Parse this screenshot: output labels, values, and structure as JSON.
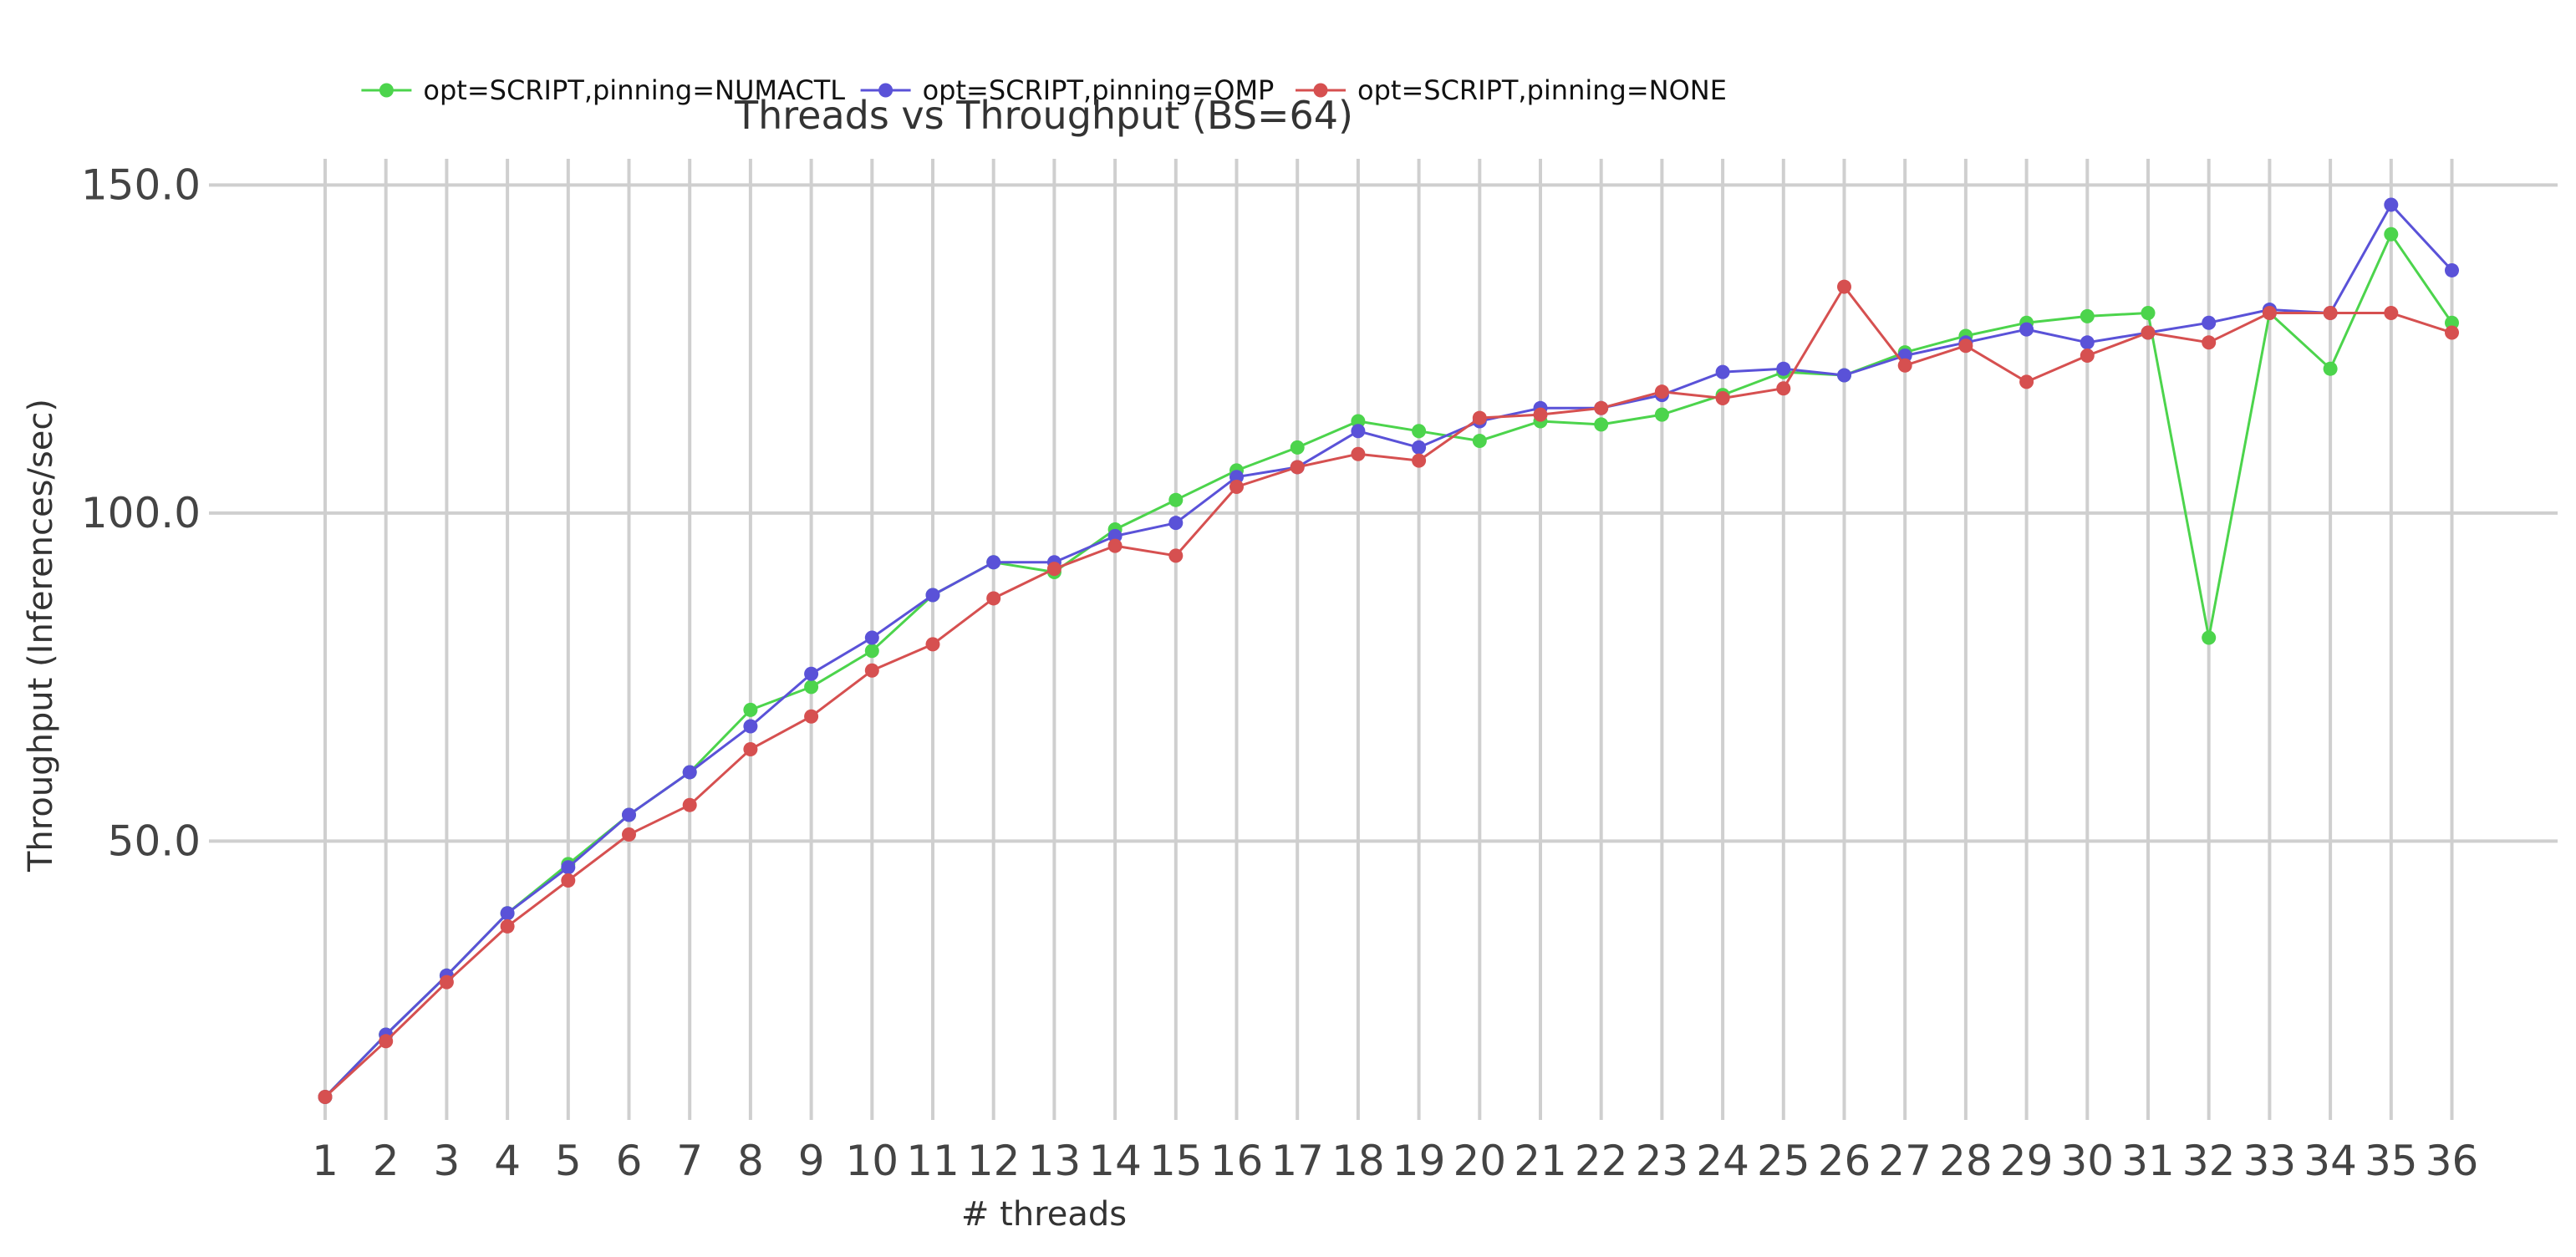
{
  "chart_data": {
    "type": "line",
    "title": "Threads vs Throughput (BS=64)",
    "xlabel": "# threads",
    "ylabel": "Throughput (Inferences/sec)",
    "x": [
      1,
      2,
      3,
      4,
      5,
      6,
      7,
      8,
      9,
      10,
      11,
      12,
      13,
      14,
      15,
      16,
      17,
      18,
      19,
      20,
      21,
      22,
      23,
      24,
      25,
      26,
      27,
      28,
      29,
      30,
      31,
      32,
      33,
      34,
      35,
      36
    ],
    "ylim": [
      7.5,
      154
    ],
    "yticks": [
      50.0,
      100.0,
      150.0
    ],
    "ytick_labels": [
      "50.0",
      "100.0",
      "150.0"
    ],
    "grid": true,
    "legend": "top-center",
    "series": [
      {
        "name": "opt=SCRIPT,pinning=NUMACTL",
        "color": "#4cd44c",
        "values": [
          11.0,
          20.5,
          29.5,
          39.0,
          46.5,
          54.0,
          60.5,
          70.0,
          73.5,
          79.0,
          87.5,
          92.5,
          91.0,
          97.5,
          102.0,
          106.5,
          110.0,
          114.0,
          112.5,
          111.0,
          114.0,
          113.5,
          115.0,
          118.0,
          121.5,
          121.0,
          124.5,
          127.0,
          129.0,
          130.0,
          130.5,
          81.0,
          130.5,
          122.0,
          142.5,
          129.0
        ]
      },
      {
        "name": "opt=SCRIPT,pinning=OMP",
        "color": "#5a52d8",
        "values": [
          11.0,
          20.5,
          29.5,
          39.0,
          46.0,
          54.0,
          60.5,
          67.5,
          75.5,
          81.0,
          87.5,
          92.5,
          92.5,
          96.5,
          98.5,
          105.5,
          107.0,
          112.5,
          110.0,
          114.0,
          116.0,
          116.0,
          118.0,
          121.5,
          122.0,
          121.0,
          124.0,
          126.0,
          128.0,
          126.0,
          127.5,
          129.0,
          131.0,
          130.5,
          147.0,
          137.0
        ]
      },
      {
        "name": "opt=SCRIPT,pinning=NONE",
        "color": "#d65050",
        "values": [
          11.0,
          19.5,
          28.5,
          37.0,
          44.0,
          51.0,
          55.5,
          64.0,
          69.0,
          76.0,
          80.0,
          87.0,
          91.5,
          95.0,
          93.5,
          104.0,
          107.0,
          109.0,
          108.0,
          114.5,
          115.0,
          116.0,
          118.5,
          117.5,
          119.0,
          134.5,
          122.5,
          125.5,
          120.0,
          124.0,
          127.5,
          126.0,
          130.5,
          130.5,
          130.5,
          127.5
        ]
      }
    ]
  }
}
